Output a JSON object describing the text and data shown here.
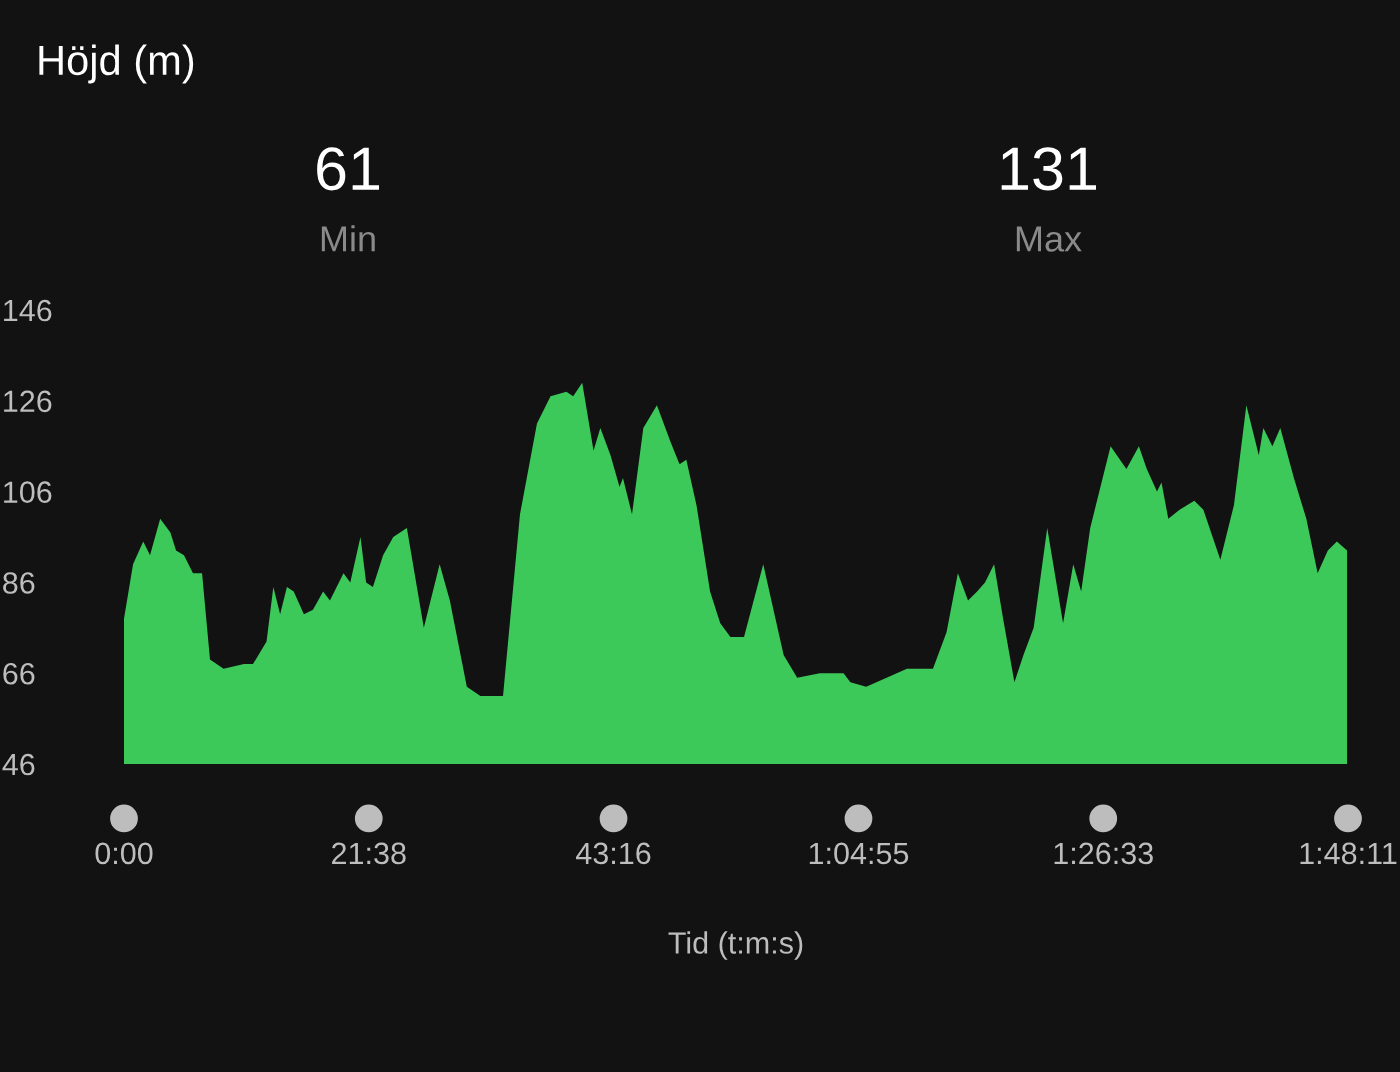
{
  "chart_data": {
    "type": "area",
    "title": "Höjd (m)",
    "xlabel": "Tid (t:m:s)",
    "annotations": [
      "61",
      "Min",
      "131",
      "Max"
    ],
    "x": [
      0,
      0.8,
      1.7,
      2.3,
      3.2,
      4.1,
      4.6,
      5.3,
      6.1,
      6.9,
      7.6,
      8.8,
      10.6,
      11.4,
      12.6,
      13.2,
      13.8,
      14.4,
      15.0,
      15.9,
      16.7,
      17.6,
      18.2,
      19.4,
      20.0,
      20.9,
      21.4,
      22.0,
      22.9,
      23.8,
      25.0,
      26.5,
      27.0,
      27.9,
      28.8,
      30.3,
      31.5,
      32.7,
      33.5,
      35.0,
      36.5,
      37.7,
      39.1,
      39.7,
      40.5,
      41.5,
      42.1,
      43.0,
      43.8,
      44.1,
      44.9,
      45.9,
      47.1,
      48.3,
      49.1,
      49.7,
      50.6,
      51.8,
      52.7,
      53.6,
      54.8,
      56.5,
      58.3,
      59.5,
      61.5,
      63.6,
      64.2,
      65.6,
      67.4,
      69.2,
      70.4,
      71.5,
      72.7,
      73.7,
      74.6,
      75.4,
      76.1,
      76.9,
      77.7,
      78.7,
      79.5,
      80.4,
      81.6,
      83.0,
      83.9,
      84.6,
      85.4,
      87.2,
      88.6,
      89.7,
      90.4,
      91.3,
      91.7,
      92.3,
      93.3,
      94.6,
      95.4,
      96.9,
      98.1,
      99.2,
      100.3,
      100.7,
      101.5,
      102.2,
      103.4,
      104.5,
      105.5,
      106.4,
      107.2,
      108.1
    ],
    "series": [
      {
        "color": "#3cc95a",
        "values": [
          78,
          90,
          95,
          92,
          100,
          97,
          93,
          92,
          88,
          88,
          69,
          67,
          68,
          68,
          73,
          85,
          79,
          85,
          84,
          79,
          80,
          84,
          82,
          88,
          86,
          96,
          86,
          85,
          92,
          96,
          98,
          76,
          81,
          90,
          82,
          63,
          61,
          61,
          61,
          101,
          121,
          127,
          128,
          127,
          130,
          115,
          120,
          114,
          107,
          109,
          101,
          120,
          125,
          117,
          112,
          113,
          103,
          84,
          77,
          74,
          74,
          90,
          70,
          65,
          66,
          66,
          64,
          63,
          65,
          67,
          67,
          67,
          75,
          88,
          82,
          84,
          86,
          90,
          78,
          64,
          70,
          76,
          98,
          77,
          90,
          84,
          98,
          116,
          111,
          116,
          111,
          106,
          108,
          100,
          102,
          104,
          102,
          91,
          103,
          125,
          114,
          120,
          116,
          120,
          109,
          100,
          88,
          93,
          95,
          93
        ]
      }
    ],
    "xlim": [
      0,
      108.183
    ],
    "xticks": [
      {
        "value": 0,
        "label": "0:00"
      },
      {
        "value": 21.633,
        "label": "21:38"
      },
      {
        "value": 43.267,
        "label": "43:16"
      },
      {
        "value": 64.917,
        "label": "1:04:55"
      },
      {
        "value": 86.55,
        "label": "1:26:33"
      },
      {
        "value": 108.183,
        "label": "1:48:11"
      }
    ],
    "ylim": [
      46,
      146
    ],
    "yticks": [
      46,
      66,
      86,
      106,
      126,
      146
    ],
    "grid": false
  }
}
